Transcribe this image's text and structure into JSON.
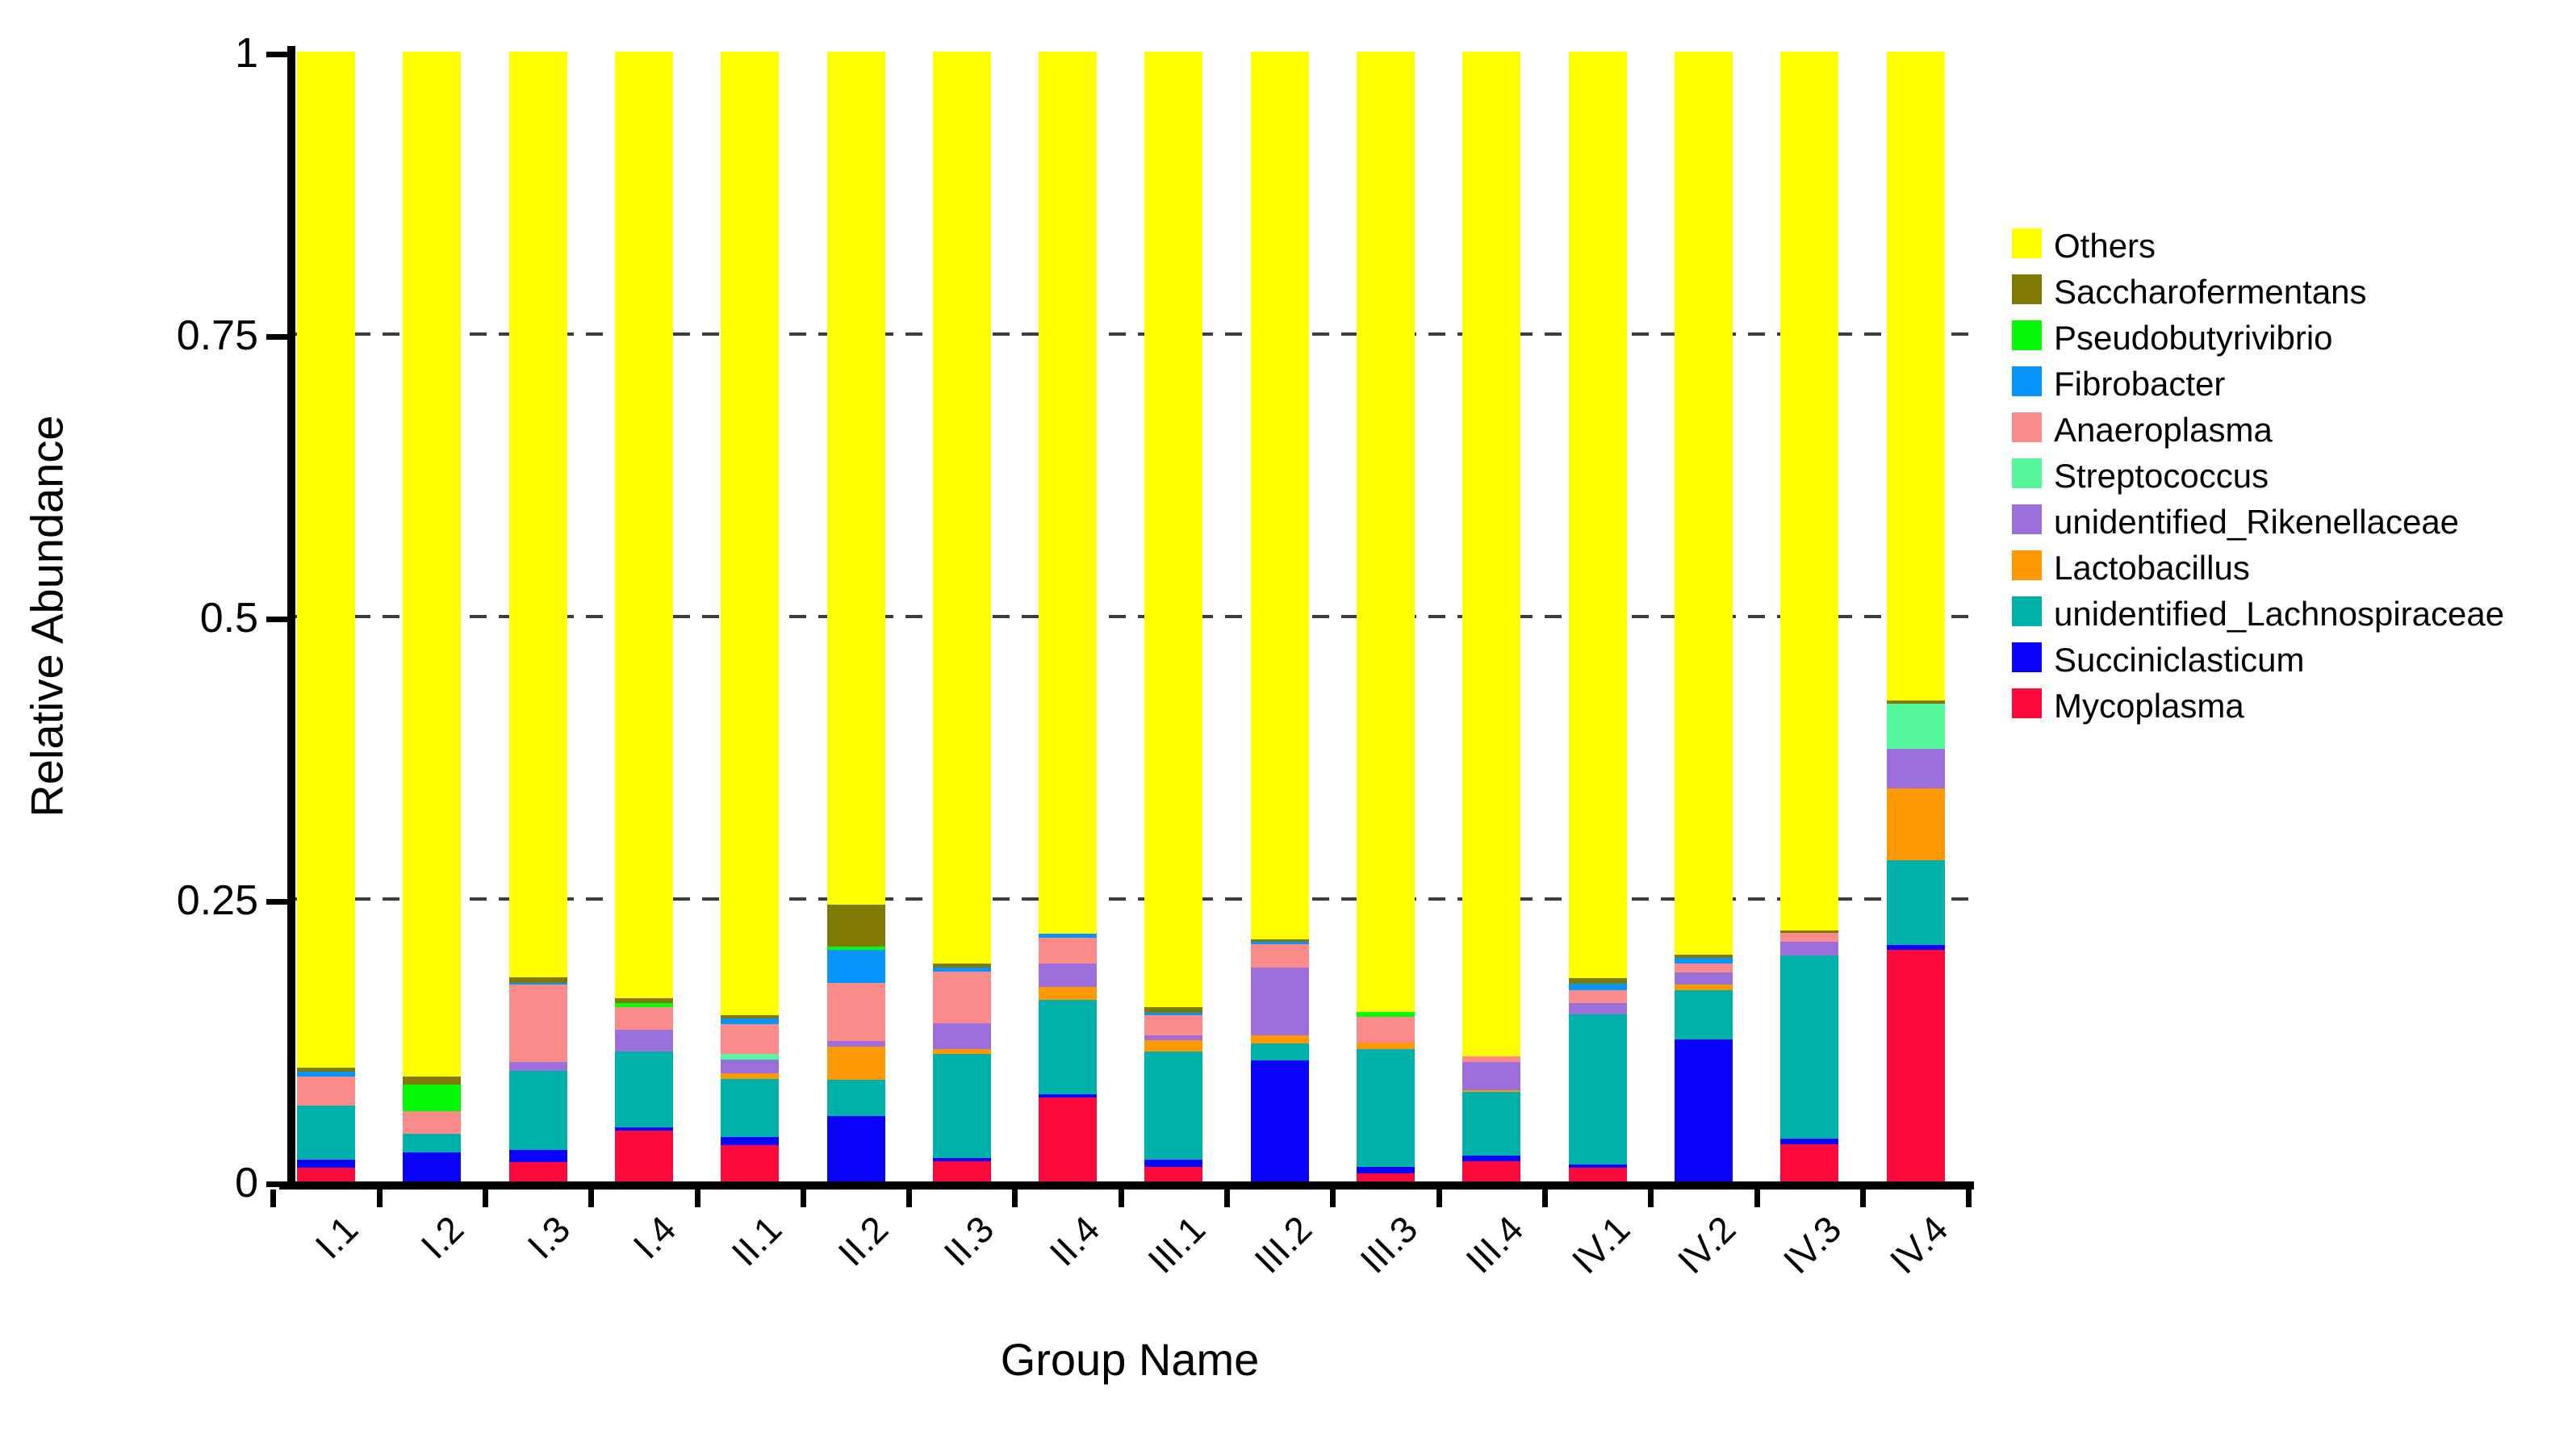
{
  "figure": {
    "background": "#FFFFFF",
    "y_axis": {
      "title": "Relative Abundance",
      "ticks": [
        {
          "label": "1",
          "value": 1
        },
        {
          "label": "0.75",
          "value": 0.75
        },
        {
          "label": "0.5",
          "value": 0.5
        },
        {
          "label": "0.25",
          "value": 0.25
        },
        {
          "label": "0",
          "value": 0
        }
      ]
    },
    "x_axis": {
      "title": "Group Name"
    },
    "legend": {
      "position": "right",
      "items": [
        {
          "label": "Others",
          "color": "#FFFF00"
        },
        {
          "label": "Saccharofermentans",
          "color": "#7E7A04"
        },
        {
          "label": "Pseudobutyrivibrio",
          "color": "#06F906"
        },
        {
          "label": "Fibrobacter",
          "color": "#0894FE"
        },
        {
          "label": "Anaeroplasma",
          "color": "#FB8A8A"
        },
        {
          "label": "Streptococcus",
          "color": "#55F99B"
        },
        {
          "label": "unidentified_Rikenellaceae",
          "color": "#9C6FDC"
        },
        {
          "label": "Lactobacillus",
          "color": "#FE9903"
        },
        {
          "label": "unidentified_Lachnospiraceae",
          "color": "#00B1A9"
        },
        {
          "label": "Succiniclasticum",
          "color": "#0903FB"
        },
        {
          "label": "Mycoplasma",
          "color": "#FC0A3C"
        }
      ]
    }
  },
  "chart_data": {
    "type": "bar",
    "stacked": true,
    "stack_order": "bottom_to_top",
    "title": "",
    "xlabel": "Group Name",
    "ylabel": "Relative Abundance",
    "ylim": [
      0,
      1
    ],
    "grid": true,
    "gridline_values": [
      0.25,
      0.5,
      0.75
    ],
    "gridline_style": "dashed",
    "legend_position": "right",
    "categories": [
      "I.1",
      "I.2",
      "I.3",
      "I.4",
      "II.1",
      "II.2",
      "II.3",
      "II.4",
      "III.1",
      "III.2",
      "III.3",
      "III.4",
      "IV.1",
      "IV.2",
      "IV.3",
      "IV.4"
    ],
    "series": [
      {
        "name": "Mycoplasma",
        "color": "#FC0A3C",
        "values": [
          0.012,
          0,
          0.017,
          0.045,
          0.032,
          0,
          0.018,
          0.074,
          0.013,
          0,
          0.007,
          0.018,
          0.012,
          0,
          0.033,
          0.205
        ]
      },
      {
        "name": "Succiniclasticum",
        "color": "#0903FB",
        "values": [
          0.007,
          0.026,
          0.011,
          0.003,
          0.007,
          0.058,
          0.003,
          0.003,
          0.006,
          0.107,
          0.006,
          0.005,
          0.003,
          0.126,
          0.005,
          0.004
        ]
      },
      {
        "name": "unidentified_Lachnospiraceae",
        "color": "#00B1A9",
        "values": [
          0.048,
          0.016,
          0.07,
          0.067,
          0.052,
          0.032,
          0.092,
          0.084,
          0.096,
          0.015,
          0.104,
          0.056,
          0.133,
          0.043,
          0.162,
          0.075
        ]
      },
      {
        "name": "Lactobacillus",
        "color": "#FE9903",
        "values": [
          0,
          0,
          0,
          0,
          0.005,
          0.029,
          0.004,
          0.011,
          0.01,
          0.007,
          0.006,
          0.002,
          0,
          0.005,
          0,
          0.064
        ]
      },
      {
        "name": "unidentified_Rikenellaceae",
        "color": "#9C6FDC",
        "values": [
          0,
          0,
          0.008,
          0.019,
          0.012,
          0.005,
          0.023,
          0.021,
          0.004,
          0.06,
          0,
          0.025,
          0.01,
          0.011,
          0.012,
          0.035
        ]
      },
      {
        "name": "Streptococcus",
        "color": "#55F99B",
        "values": [
          0,
          0,
          0,
          0,
          0.005,
          0,
          0,
          0,
          0,
          0,
          0,
          0,
          0,
          0,
          0,
          0.04
        ]
      },
      {
        "name": "Anaeroplasma",
        "color": "#FB8A8A",
        "values": [
          0.026,
          0.02,
          0.068,
          0.02,
          0.026,
          0.052,
          0.046,
          0.023,
          0.018,
          0.021,
          0.023,
          0.005,
          0.011,
          0.008,
          0.008,
          0
        ]
      },
      {
        "name": "Fibrobacter",
        "color": "#0894FE",
        "values": [
          0.004,
          0,
          0.002,
          0,
          0.005,
          0.029,
          0.003,
          0.003,
          0.002,
          0.002,
          0,
          0,
          0.006,
          0.005,
          0,
          0
        ]
      },
      {
        "name": "Pseudobutyrivibrio",
        "color": "#06F906",
        "values": [
          0,
          0.024,
          0,
          0.004,
          0,
          0.003,
          0,
          0,
          0,
          0,
          0.004,
          0,
          0,
          0,
          0,
          0
        ]
      },
      {
        "name": "Saccharofermentans",
        "color": "#7E7A04",
        "values": [
          0.004,
          0.007,
          0.005,
          0.004,
          0.003,
          0.037,
          0.004,
          0,
          0.005,
          0.002,
          0,
          0,
          0.005,
          0.003,
          0.002,
          0.003
        ]
      },
      {
        "name": "Others",
        "color": "#FFFF00",
        "values": [
          0.899,
          0.907,
          0.819,
          0.838,
          0.853,
          0.755,
          0.807,
          0.781,
          0.846,
          0.786,
          0.85,
          0.889,
          0.82,
          0.799,
          0.778,
          0.574
        ]
      }
    ]
  }
}
